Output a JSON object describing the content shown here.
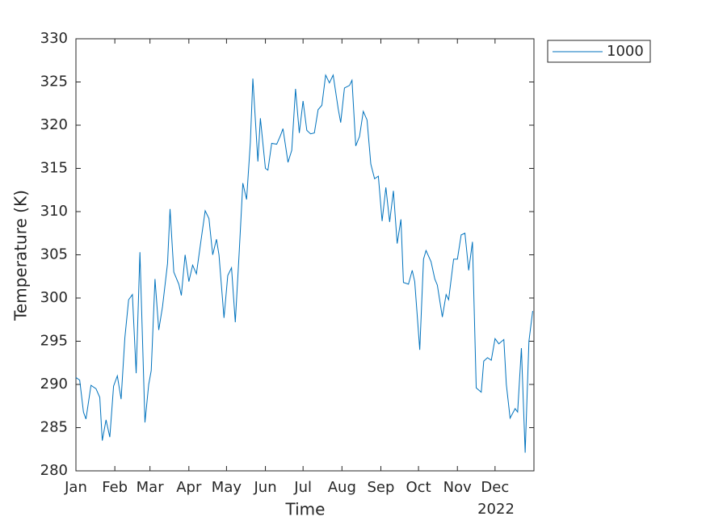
{
  "chart_data": {
    "type": "line",
    "xlabel": "Time",
    "ylabel": "Temperature (K)",
    "x_secondary_label": "2022",
    "xlim": [
      0,
      365
    ],
    "xticks": [
      {
        "value": 0,
        "label": "Jan"
      },
      {
        "value": 31,
        "label": "Feb"
      },
      {
        "value": 59,
        "label": "Mar"
      },
      {
        "value": 90,
        "label": "Apr"
      },
      {
        "value": 120,
        "label": "May"
      },
      {
        "value": 151,
        "label": "Jun"
      },
      {
        "value": 181,
        "label": "Jul"
      },
      {
        "value": 212,
        "label": "Aug"
      },
      {
        "value": 243,
        "label": "Sep"
      },
      {
        "value": 273,
        "label": "Oct"
      },
      {
        "value": 304,
        "label": "Nov"
      },
      {
        "value": 334,
        "label": "Dec"
      }
    ],
    "ylim": [
      280,
      330
    ],
    "yticks": [
      280,
      285,
      290,
      295,
      300,
      305,
      310,
      315,
      320,
      325,
      330
    ],
    "legend_position": "outside-top-right",
    "x": [
      0,
      3,
      6,
      8,
      12,
      16,
      19,
      21,
      24,
      27,
      30,
      33,
      36,
      39,
      42,
      45,
      48,
      51,
      55,
      58,
      60,
      63,
      66,
      69,
      73,
      75,
      78,
      82,
      84,
      87,
      90,
      93,
      96,
      100,
      103,
      106,
      109,
      112,
      114,
      118,
      121,
      124,
      127,
      130,
      133,
      136,
      139,
      141,
      145,
      147,
      151,
      153,
      156,
      160,
      163,
      165,
      169,
      172,
      175,
      178,
      181,
      184,
      187,
      190,
      193,
      196,
      199,
      202,
      205,
      209,
      211,
      214,
      218,
      220,
      223,
      226,
      229,
      232,
      235,
      238,
      241,
      244,
      247,
      250,
      253,
      256,
      259,
      261,
      265,
      268,
      270,
      274,
      277,
      279,
      283,
      286,
      288,
      292,
      295,
      297,
      301,
      304,
      307,
      310,
      313,
      316,
      319,
      323,
      325,
      328,
      331,
      334,
      337,
      341,
      343,
      346,
      350,
      352,
      355,
      358,
      361,
      364
    ],
    "series": [
      {
        "name": "1000",
        "color": "#0072bd",
        "values": [
          290.8,
          290.5,
          286.8,
          286,
          289.9,
          289.5,
          288.5,
          283.5,
          285.9,
          283.9,
          289.8,
          291,
          288.3,
          295.4,
          299.8,
          300.4,
          291.3,
          305.3,
          285.6,
          290,
          291.6,
          302.2,
          296.3,
          299,
          304,
          310.3,
          303,
          301.6,
          300.3,
          305,
          301.9,
          303.8,
          302.8,
          307,
          310.1,
          309.2,
          305,
          306.8,
          305,
          297.7,
          302.6,
          303.5,
          297.2,
          305,
          313.3,
          311.4,
          318,
          325.4,
          315.8,
          320.8,
          315,
          314.8,
          317.9,
          317.8,
          318.8,
          319.6,
          315.7,
          317.1,
          324.2,
          319.1,
          322.8,
          319.4,
          319,
          319.1,
          321.8,
          322.3,
          325.8,
          324.9,
          325.8,
          321.9,
          320.3,
          324.3,
          324.6,
          325.2,
          317.6,
          318.7,
          321.6,
          320.6,
          315.5,
          313.8,
          314.1,
          308.9,
          312.8,
          308.8,
          312.4,
          306.3,
          309.1,
          301.8,
          301.6,
          303.2,
          301.9,
          294,
          304.5,
          305.5,
          304.2,
          302.2,
          301.5,
          297.8,
          300.4,
          299.8,
          304.5,
          304.5,
          307.3,
          307.5,
          303.2,
          306.5,
          289.6,
          289.1,
          292.7,
          293.1,
          292.8,
          295.3,
          294.7,
          295.2,
          290,
          286.1,
          287.2,
          286.8,
          294.2,
          282.1,
          295,
          298.5
        ]
      }
    ]
  }
}
